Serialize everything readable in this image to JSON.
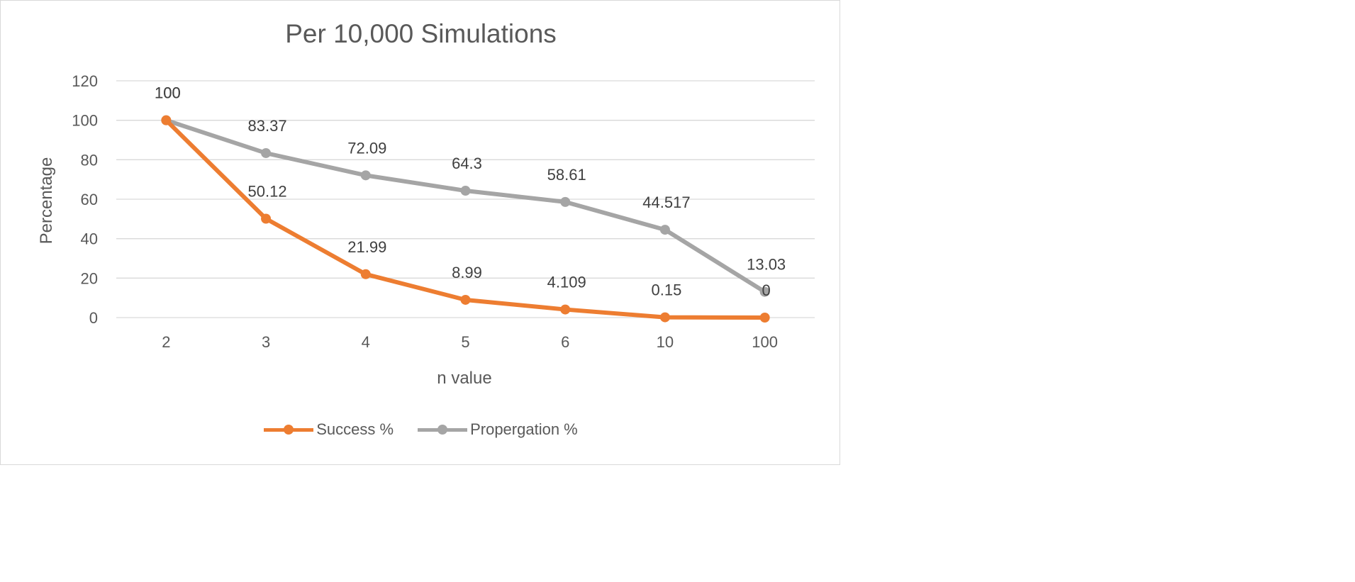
{
  "chart_data": {
    "type": "line",
    "title": "Per 10,000 Simulations",
    "xlabel": "n value",
    "ylabel": "Percentage",
    "categories": [
      "2",
      "3",
      "4",
      "5",
      "6",
      "10",
      "100"
    ],
    "ylim": [
      0,
      120
    ],
    "yticks": [
      0,
      20,
      40,
      60,
      80,
      100,
      120
    ],
    "grid": true,
    "legend_position": "bottom",
    "series": [
      {
        "name": "Success %",
        "color": "#ed7d31",
        "values": [
          100,
          50.12,
          21.99,
          8.99,
          4.109,
          0.15,
          0
        ],
        "labels": [
          "100",
          "50.12",
          "21.99",
          "8.99",
          "4.109",
          "0.15",
          "0"
        ]
      },
      {
        "name": "Propergation %",
        "color": "#a5a5a5",
        "values": [
          100,
          83.37,
          72.09,
          64.3,
          58.61,
          44.517,
          13.03
        ],
        "labels": [
          "100",
          "83.37",
          "72.09",
          "64.3",
          "58.61",
          "44.517",
          "13.03"
        ]
      }
    ]
  }
}
